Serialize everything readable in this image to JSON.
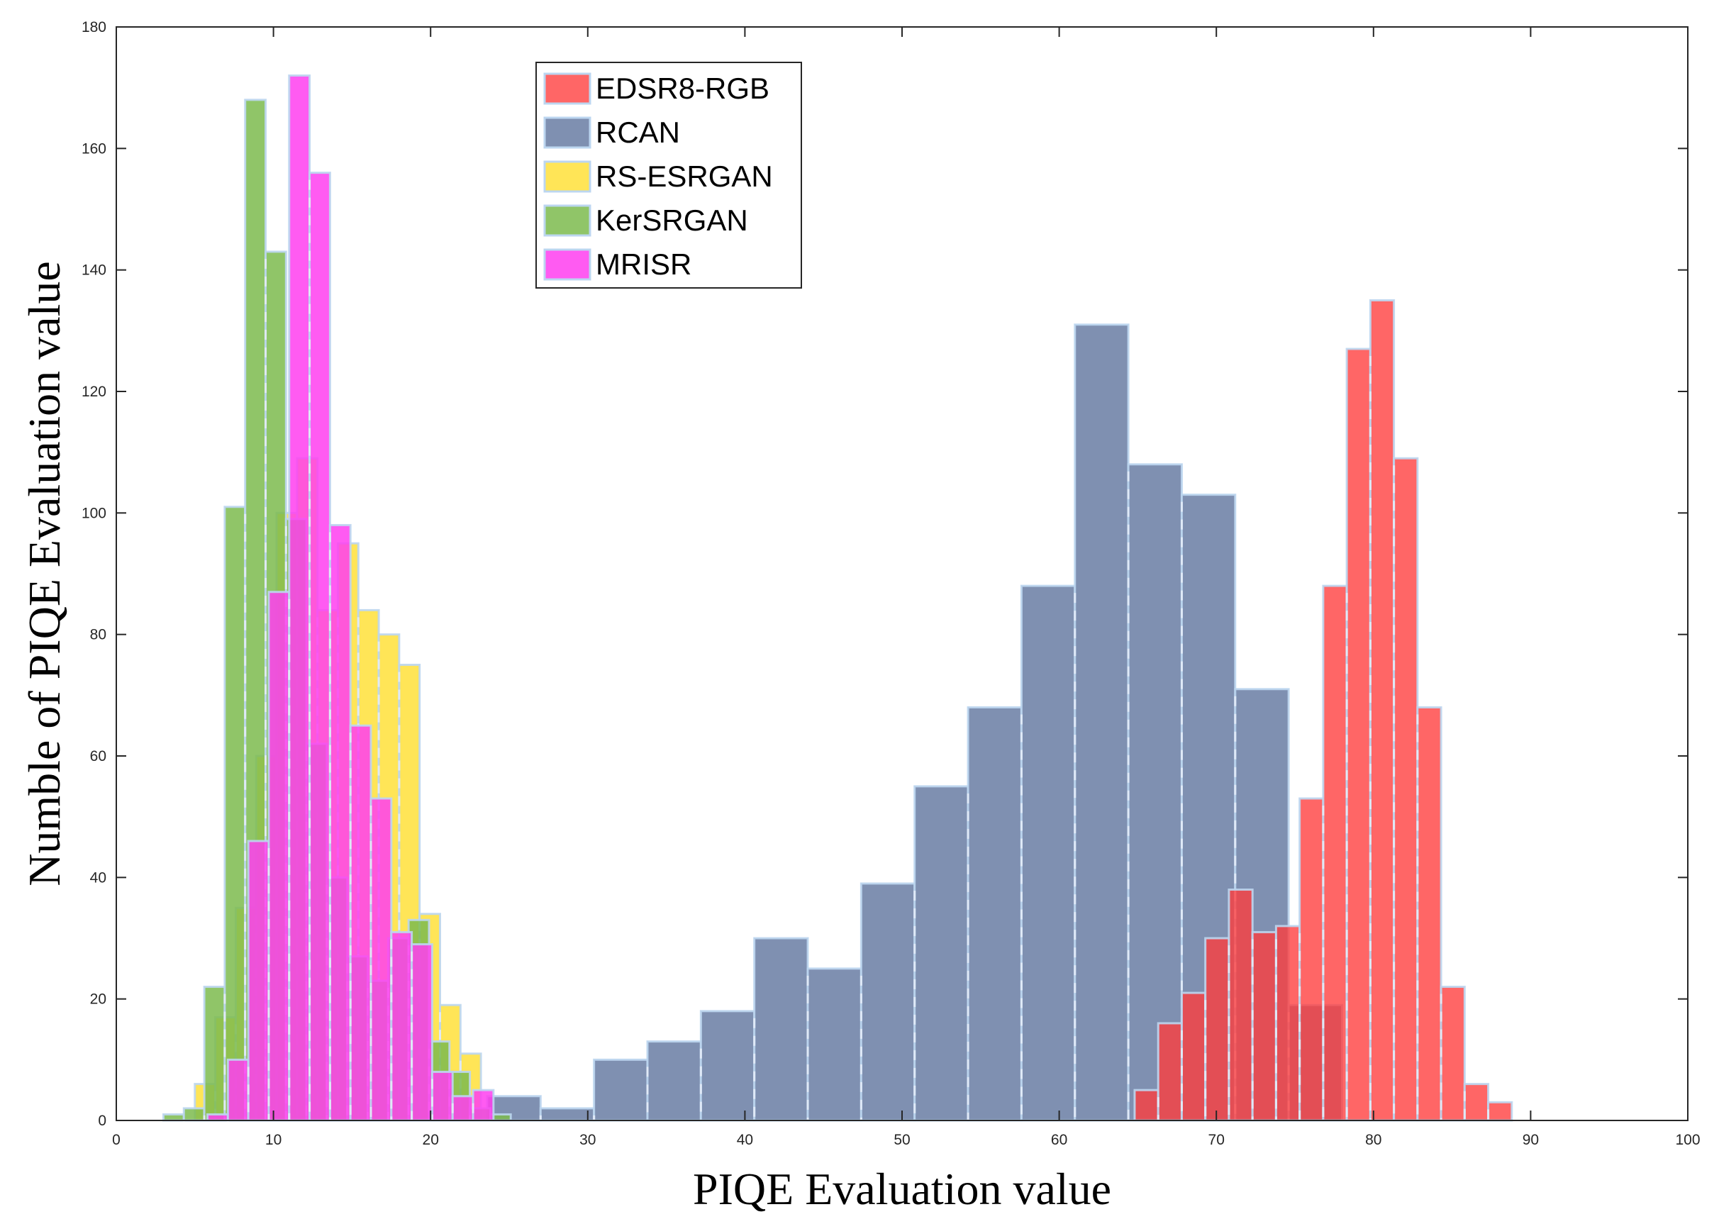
{
  "chart_data": {
    "type": "bar",
    "subtype": "overlaid-histogram",
    "title": "",
    "xlabel": "PIQE Evaluation value",
    "ylabel": "Numble of PIQE Evaluation value",
    "xlim": [
      0,
      100
    ],
    "ylim": [
      0,
      180
    ],
    "xticks": [
      "0",
      "10",
      "20",
      "30",
      "40",
      "50",
      "60",
      "70",
      "80",
      "90",
      "100"
    ],
    "yticks": [
      "0",
      "20",
      "40",
      "60",
      "80",
      "100",
      "120",
      "140",
      "160",
      "180"
    ],
    "grid": false,
    "legend_position": "top-left",
    "series": [
      {
        "name": "RCAN",
        "color": "#5b719b",
        "opacity": 0.78,
        "edges": [
          23.6,
          27.0,
          30.4,
          33.8,
          37.2,
          40.6,
          44.0,
          47.4,
          50.8,
          54.2,
          57.6,
          61.0,
          64.4,
          67.8,
          71.2,
          74.6,
          78.0
        ],
        "values": [
          4,
          2,
          10,
          13,
          18,
          30,
          25,
          39,
          55,
          68,
          88,
          131,
          108,
          103,
          71,
          19
        ]
      },
      {
        "name": "EDSR8-RGB",
        "color": "#ff3b3b",
        "opacity": 0.78,
        "edges": [
          64.8,
          66.3,
          67.8,
          69.3,
          70.8,
          72.3,
          73.8,
          75.3,
          76.8,
          78.3,
          79.8,
          81.3,
          82.8,
          84.3,
          85.8,
          87.3,
          88.8,
          90.3
        ],
        "values": [
          5,
          16,
          21,
          30,
          38,
          31,
          32,
          53,
          88,
          127,
          135,
          109,
          68,
          22,
          6,
          3,
          0
        ]
      },
      {
        "name": "RS-ESRGAN",
        "color": "#ffe03a",
        "opacity": 0.85,
        "edges": [
          5.0,
          6.3,
          7.6,
          8.9,
          10.2,
          11.5,
          12.8,
          14.1,
          15.4,
          16.7,
          18.0,
          19.3,
          20.6,
          21.9,
          23.2
        ],
        "values": [
          6,
          17,
          35,
          60,
          100,
          109,
          84,
          95,
          84,
          80,
          75,
          34,
          19,
          11
        ],
        "values_above_23": [
          4,
          2,
          0
        ]
      },
      {
        "name": "KerSRGAN",
        "color": "#7dbb4d",
        "opacity": 0.85,
        "edges": [
          3.0,
          4.3,
          5.6,
          6.9,
          8.2,
          9.5,
          10.8,
          12.1,
          13.4,
          14.7,
          16.0,
          17.3,
          18.6,
          19.9,
          21.2,
          22.5,
          23.8,
          25.1
        ],
        "values": [
          1,
          2,
          22,
          101,
          168,
          143,
          99,
          62,
          40,
          27,
          23,
          30,
          33,
          13,
          8,
          2,
          1
        ]
      },
      {
        "name": "MRISR",
        "color": "#ff3ef0",
        "opacity": 0.85,
        "edges": [
          5.8,
          7.1,
          8.4,
          9.7,
          11.0,
          12.3,
          13.6,
          14.9,
          16.2,
          17.5,
          18.8,
          20.1,
          21.4,
          22.7,
          24.0
        ],
        "values": [
          1,
          10,
          46,
          87,
          172,
          156,
          98,
          65,
          53,
          31,
          29,
          8,
          4,
          5
        ]
      }
    ],
    "legend_order": [
      "EDSR8-RGB",
      "RCAN",
      "RS-ESRGAN",
      "KerSRGAN",
      "MRISR"
    ]
  }
}
